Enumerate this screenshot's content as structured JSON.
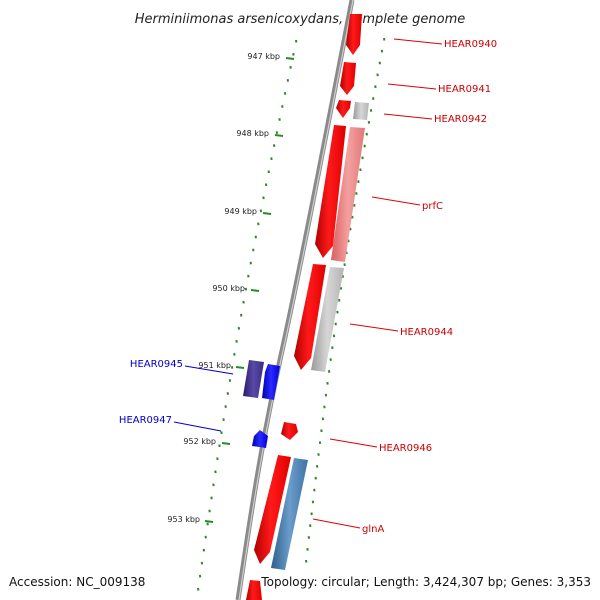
{
  "title": "Herminiimonas arsenicoxydans, complete genome",
  "footer": {
    "accession": "Accession: NC_009138",
    "topology": "Topology: circular; Length: 3,424,307 bp; Genes: 3,353"
  },
  "colors": {
    "backbone": "#8a8a8a",
    "ruler_dots": "#2a8a2a",
    "forward_gene": "#ff0000",
    "reverse_gene": "#1010ff",
    "reverse_gene_dark": "#3a2a8a",
    "pink_gene": "#f08080",
    "gray_gene": "#c0c0c0",
    "steel_gene": "#4682b4",
    "forward_label": "#cc0000",
    "reverse_label": "#0000cc"
  },
  "ruler": {
    "ticks": [
      {
        "label": "947 kbp"
      },
      {
        "label": "948 kbp"
      },
      {
        "label": "949 kbp"
      },
      {
        "label": "950 kbp"
      },
      {
        "label": "951 kbp"
      },
      {
        "label": "952 kbp"
      },
      {
        "label": "953 kbp"
      }
    ]
  },
  "genes": [
    {
      "label": "HEAR0940",
      "strand": "forward"
    },
    {
      "label": "HEAR0941",
      "strand": "forward"
    },
    {
      "label": "HEAR0942",
      "strand": "forward"
    },
    {
      "label": "prfC",
      "strand": "forward"
    },
    {
      "label": "HEAR0944",
      "strand": "forward"
    },
    {
      "label": "HEAR0945",
      "strand": "reverse"
    },
    {
      "label": "HEAR0947",
      "strand": "reverse"
    },
    {
      "label": "HEAR0946",
      "strand": "forward"
    },
    {
      "label": "glnA",
      "strand": "forward"
    }
  ]
}
